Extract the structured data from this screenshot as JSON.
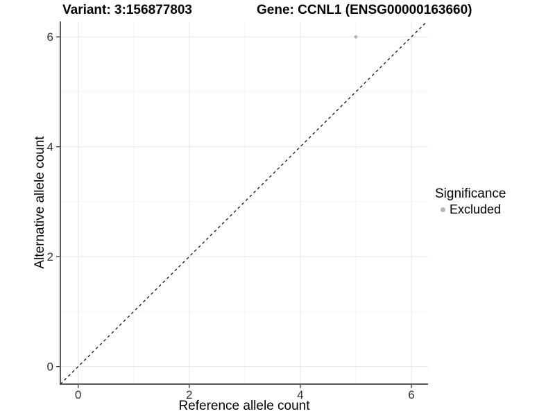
{
  "titles": {
    "variant": "Variant: 3:156877803",
    "gene": "Gene: CCNL1 (ENSG00000163660)"
  },
  "x_axis": {
    "label": "Reference allele count",
    "tick_labels": [
      "0",
      "2",
      "4",
      "6"
    ]
  },
  "y_axis": {
    "label": "Alternative allele count",
    "tick_labels": [
      "0",
      "2",
      "4",
      "6"
    ]
  },
  "legend": {
    "title": "Significance",
    "items": [
      {
        "label": "Excluded",
        "color": "#b5b5b5",
        "marker": "circle"
      }
    ]
  },
  "chart_data": {
    "type": "scatter",
    "title_left": "Variant: 3:156877803",
    "title_right": "Gene: CCNL1 (ENSG00000163660)",
    "xlabel": "Reference allele count",
    "ylabel": "Alternative allele count",
    "xlim": [
      -0.32,
      6.3
    ],
    "ylim": [
      -0.32,
      6.28
    ],
    "x_ticks": [
      0,
      2,
      4,
      6
    ],
    "y_ticks": [
      0,
      2,
      4,
      6
    ],
    "x_minor_ticks": [
      1,
      3,
      5
    ],
    "y_minor_ticks": [
      1,
      3,
      5
    ],
    "grid": "major+minor",
    "legend_position": "right",
    "series": [
      {
        "name": "Excluded",
        "color": "#b5b5b5",
        "points": [
          {
            "x": 5,
            "y": 6
          }
        ]
      }
    ],
    "reference_line": {
      "equation": "y=x",
      "style": "dashed",
      "color": "#111111"
    }
  },
  "colors": {
    "background": "#ffffff",
    "grid_major": "#e9e9e9",
    "grid_minor": "#f4f4f4",
    "axis_line": "#404040",
    "tick_mark": "#333333",
    "tick_label": "#303030",
    "point": "#b5b5b5",
    "dashed_line": "#111111"
  }
}
